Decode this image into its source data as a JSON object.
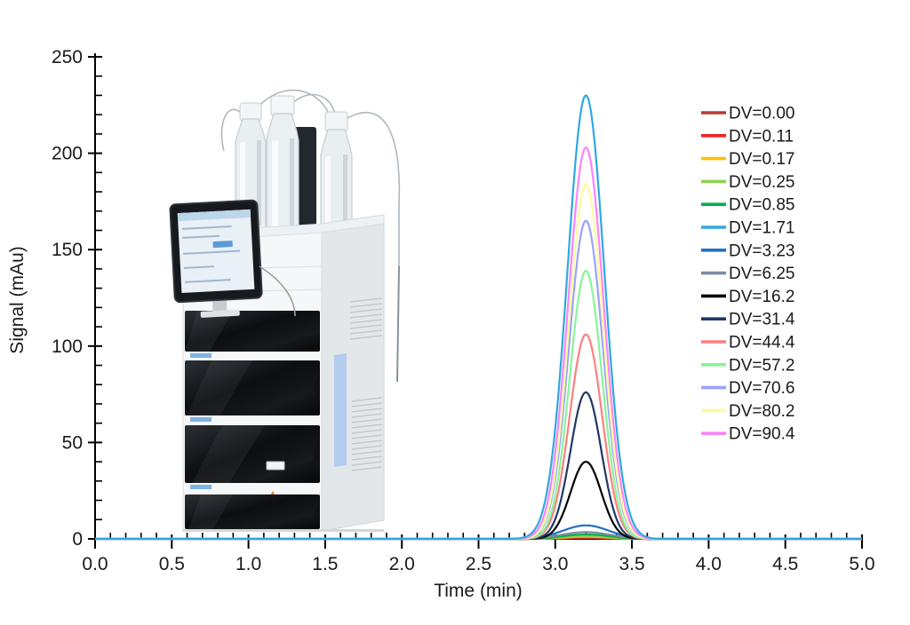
{
  "figure": {
    "background": "#ffffff"
  },
  "chart_data": {
    "type": "line",
    "title": "",
    "xlabel": "Time (min)",
    "ylabel": "Signal (mAu)",
    "xlim": [
      0.0,
      5.0
    ],
    "ylim": [
      0,
      250
    ],
    "grid": false,
    "x_major_tick_labels": [
      "0.0",
      "0.5",
      "1.0",
      "1.5",
      "2.0",
      "2.5",
      "3.0",
      "3.5",
      "4.0",
      "4.5",
      "5.0"
    ],
    "x_major_tick_values": [
      0,
      0.5,
      1,
      1.5,
      2,
      2.5,
      3,
      3.5,
      4,
      4.5,
      5
    ],
    "x_minor_step": 0.1,
    "y_major_tick_labels": [
      "0",
      "50",
      "100",
      "150",
      "200",
      "250"
    ],
    "y_major_tick_values": [
      0,
      50,
      100,
      150,
      200,
      250
    ],
    "y_minor_step": 10,
    "legend_position": "right",
    "peak_center_min": 3.2,
    "baseline_mAu": 0,
    "series": [
      {
        "label": "DV=0.00",
        "dv": 0.0,
        "color": "#b73a31",
        "peak_height_mAu": 0.4,
        "sigma_min": 0.14
      },
      {
        "label": "DV=0.11",
        "dv": 0.11,
        "color": "#ee2224",
        "peak_height_mAu": 0.8,
        "sigma_min": 0.14
      },
      {
        "label": "DV=0.17",
        "dv": 0.17,
        "color": "#ffc000",
        "peak_height_mAu": 1.1,
        "sigma_min": 0.14
      },
      {
        "label": "DV=0.25",
        "dv": 0.25,
        "color": "#92d050",
        "peak_height_mAu": 1.5,
        "sigma_min": 0.14
      },
      {
        "label": "DV=0.85",
        "dv": 0.85,
        "color": "#00b050",
        "peak_height_mAu": 2.3,
        "sigma_min": 0.15
      },
      {
        "label": "DV=1.71",
        "dv": 1.71,
        "color": "#2fa8e1",
        "peak_height_mAu": 230,
        "sigma_min": 0.12
      },
      {
        "label": "DV=3.23",
        "dv": 3.23,
        "color": "#2170c4",
        "peak_height_mAu": 7,
        "sigma_min": 0.15
      },
      {
        "label": "DV=6.25",
        "dv": 6.25,
        "color": "#7d8ca3",
        "peak_height_mAu": 3.5,
        "sigma_min": 0.16
      },
      {
        "label": "DV=16.2",
        "dv": 16.2,
        "color": "#000000",
        "peak_height_mAu": 40,
        "sigma_min": 0.1
      },
      {
        "label": "DV=31.4",
        "dv": 31.4,
        "color": "#1f3864",
        "peak_height_mAu": 76,
        "sigma_min": 0.1
      },
      {
        "label": "DV=44.4",
        "dv": 44.4,
        "color": "#ff7f80",
        "peak_height_mAu": 106,
        "sigma_min": 0.105
      },
      {
        "label": "DV=57.2",
        "dv": 57.2,
        "color": "#87f598",
        "peak_height_mAu": 139,
        "sigma_min": 0.105
      },
      {
        "label": "DV=70.6",
        "dv": 70.6,
        "color": "#9aa2fb",
        "peak_height_mAu": 165,
        "sigma_min": 0.11
      },
      {
        "label": "DV=80.2",
        "dv": 80.2,
        "color": "#fdfb9e",
        "peak_height_mAu": 184,
        "sigma_min": 0.11
      },
      {
        "label": "DV=90.4",
        "dv": 90.4,
        "color": "#fb83fb",
        "peak_height_mAu": 203,
        "sigma_min": 0.115
      }
    ]
  },
  "instrument_inset": {
    "alt": "HPLC instrument stack photo: three clear solvent bottles with white caps and tubing on a solvent tray, side-mounted touchscreen controller, and stacked white modules with glossy black drawer fronts, vent slats and a light-blue column-door strip"
  }
}
